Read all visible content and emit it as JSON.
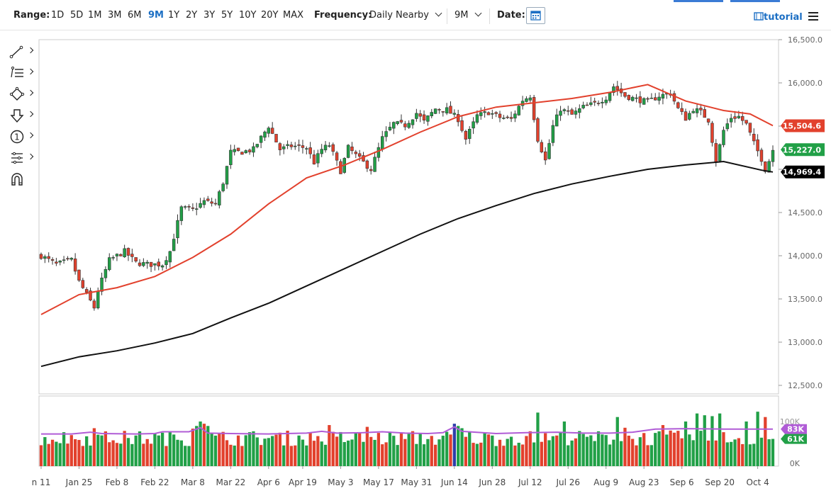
{
  "toolbar": {
    "range_label": "Range:",
    "ranges": [
      "1D",
      "5D",
      "1M",
      "3M",
      "6M",
      "9M",
      "1Y",
      "2Y",
      "3Y",
      "5Y",
      "10Y",
      "20Y",
      "MAX"
    ],
    "selected_range": "9M",
    "frequency_label": "Frequency:",
    "frequency_value": "Daily Nearby",
    "period_value": "9M",
    "date_label": "Date:",
    "tutorial_label": "tutorial"
  },
  "drawing_tools": [
    "line-tool-icon",
    "fib-tool-icon",
    "shape-tool-icon",
    "arrow-tool-icon",
    "annotation-tool-icon",
    "pattern-tool-icon",
    "magnet-icon"
  ],
  "drawing_tool_numeral": "1",
  "colors": {
    "up": "#21a047",
    "down": "#e2412d",
    "ma50": "#e2412d",
    "ma200": "#111111",
    "volume_ma": "#b05cd6",
    "volume_highlight": "#2c3ea8"
  },
  "chart_data": {
    "type": "candlestick",
    "price_axis": {
      "min": 12500,
      "max": 16500,
      "ticks": [
        12500,
        13000,
        13500,
        14000,
        14500,
        15000,
        15500,
        16000,
        16500
      ],
      "tick_labels": [
        "12,500.0",
        "13,000.0",
        "13,500.0",
        "14,000.0",
        "14,500.0",
        "15,000.0",
        "15,500.0",
        "16,000.0",
        "16,500.0"
      ]
    },
    "date_axis": {
      "labels": [
        "n 11",
        "Jan 25",
        "Feb 8",
        "Feb 22",
        "Mar 8",
        "Mar 22",
        "Apr 6",
        "Apr 19",
        "May 3",
        "May 17",
        "May 31",
        "Jun 14",
        "Jun 28",
        "Jul 12",
        "Jul 26",
        "Aug 9",
        "Aug 23",
        "Sep 6",
        "Sep 20",
        "Oct 4"
      ],
      "label_bars": [
        0,
        10,
        20,
        30,
        40,
        50,
        60,
        69,
        79,
        89,
        99,
        109,
        119,
        129,
        139,
        149,
        159,
        169,
        179,
        189
      ]
    },
    "close_path": [
      [
        0,
        14000
      ],
      [
        4,
        13900
      ],
      [
        8,
        13950
      ],
      [
        10,
        13700
      ],
      [
        12,
        13550
      ],
      [
        14,
        13400
      ],
      [
        15,
        13600
      ],
      [
        18,
        13950
      ],
      [
        22,
        14050
      ],
      [
        25,
        13920
      ],
      [
        28,
        13900
      ],
      [
        32,
        13900
      ],
      [
        34,
        14050
      ],
      [
        37,
        14550
      ],
      [
        40,
        14530
      ],
      [
        43,
        14630
      ],
      [
        46,
        14600
      ],
      [
        48,
        14850
      ],
      [
        50,
        15200
      ],
      [
        53,
        15200
      ],
      [
        56,
        15230
      ],
      [
        60,
        15500
      ],
      [
        63,
        15230
      ],
      [
        66,
        15270
      ],
      [
        70,
        15250
      ],
      [
        72,
        15080
      ],
      [
        74,
        15230
      ],
      [
        76,
        15280
      ],
      [
        79,
        14980
      ],
      [
        81,
        15250
      ],
      [
        84,
        15120
      ],
      [
        87,
        15000
      ],
      [
        90,
        15360
      ],
      [
        93,
        15530
      ],
      [
        96,
        15510
      ],
      [
        99,
        15650
      ],
      [
        101,
        15550
      ],
      [
        104,
        15700
      ],
      [
        107,
        15690
      ],
      [
        110,
        15580
      ],
      [
        112,
        15350
      ],
      [
        115,
        15620
      ],
      [
        118,
        15660
      ],
      [
        121,
        15600
      ],
      [
        124,
        15580
      ],
      [
        127,
        15800
      ],
      [
        129,
        15850
      ],
      [
        131,
        15350
      ],
      [
        133,
        15100
      ],
      [
        135,
        15500
      ],
      [
        137,
        15700
      ],
      [
        140,
        15630
      ],
      [
        143,
        15720
      ],
      [
        146,
        15760
      ],
      [
        149,
        15830
      ],
      [
        151,
        15960
      ],
      [
        154,
        15850
      ],
      [
        157,
        15810
      ],
      [
        160,
        15780
      ],
      [
        163,
        15850
      ],
      [
        166,
        15880
      ],
      [
        168,
        15700
      ],
      [
        170,
        15590
      ],
      [
        172,
        15700
      ],
      [
        174,
        15660
      ],
      [
        176,
        15570
      ],
      [
        178,
        15100
      ],
      [
        180,
        15450
      ],
      [
        182,
        15600
      ],
      [
        184,
        15610
      ],
      [
        186,
        15520
      ],
      [
        188,
        15300
      ],
      [
        190,
        15120
      ],
      [
        191,
        15000
      ],
      [
        192,
        15100
      ],
      [
        193,
        15227
      ]
    ],
    "candles_total": 194,
    "last_price": 15227.0,
    "series": [
      {
        "name": "50-day MA",
        "last_value": 15504.6,
        "points": [
          [
            0,
            13320
          ],
          [
            10,
            13550
          ],
          [
            20,
            13630
          ],
          [
            30,
            13760
          ],
          [
            40,
            13980
          ],
          [
            50,
            14250
          ],
          [
            60,
            14600
          ],
          [
            70,
            14900
          ],
          [
            80,
            15050
          ],
          [
            90,
            15230
          ],
          [
            100,
            15430
          ],
          [
            110,
            15610
          ],
          [
            120,
            15720
          ],
          [
            130,
            15770
          ],
          [
            140,
            15820
          ],
          [
            150,
            15890
          ],
          [
            160,
            15980
          ],
          [
            170,
            15790
          ],
          [
            180,
            15680
          ],
          [
            187,
            15640
          ],
          [
            193,
            15505
          ]
        ]
      },
      {
        "name": "200-day MA",
        "last_value": 14969.4,
        "points": [
          [
            0,
            12720
          ],
          [
            10,
            12830
          ],
          [
            20,
            12900
          ],
          [
            30,
            12990
          ],
          [
            40,
            13100
          ],
          [
            50,
            13280
          ],
          [
            60,
            13450
          ],
          [
            70,
            13650
          ],
          [
            80,
            13850
          ],
          [
            90,
            14050
          ],
          [
            100,
            14250
          ],
          [
            110,
            14430
          ],
          [
            120,
            14580
          ],
          [
            130,
            14720
          ],
          [
            140,
            14830
          ],
          [
            150,
            14920
          ],
          [
            160,
            15000
          ],
          [
            170,
            15050
          ],
          [
            180,
            15090
          ],
          [
            190,
            14990
          ],
          [
            193,
            14969
          ]
        ]
      }
    ],
    "volume": {
      "axis_labels": [
        "0K",
        "100K"
      ],
      "max": 100000,
      "ma_last": 83000,
      "last": 61000,
      "ma_label": "83K",
      "last_label": "61K",
      "ma_points": [
        [
          0,
          72000
        ],
        [
          8,
          72000
        ],
        [
          13,
          76000
        ],
        [
          16,
          73000
        ],
        [
          25,
          72000
        ],
        [
          30,
          73000
        ],
        [
          32,
          77000
        ],
        [
          39,
          77000
        ],
        [
          42,
          86000
        ],
        [
          44,
          74000
        ],
        [
          50,
          73000
        ],
        [
          60,
          72000
        ],
        [
          70,
          74000
        ],
        [
          74,
          78000
        ],
        [
          78,
          74000
        ],
        [
          85,
          75000
        ],
        [
          90,
          77000
        ],
        [
          96,
          74000
        ],
        [
          102,
          73000
        ],
        [
          106,
          75000
        ],
        [
          109,
          88000
        ],
        [
          111,
          78000
        ],
        [
          120,
          73000
        ],
        [
          128,
          75000
        ],
        [
          136,
          76000
        ],
        [
          143,
          74000
        ],
        [
          150,
          74000
        ],
        [
          156,
          76000
        ],
        [
          162,
          83000
        ],
        [
          170,
          84000
        ],
        [
          180,
          83000
        ],
        [
          193,
          83000
        ]
      ],
      "spikes": [
        [
          14,
          85000
        ],
        [
          40,
          84000
        ],
        [
          41,
          90000
        ],
        [
          42,
          100000
        ],
        [
          43,
          95000
        ],
        [
          44,
          90000
        ],
        [
          76,
          92000
        ],
        [
          86,
          88000
        ],
        [
          109,
          95000
        ],
        [
          110,
          90000
        ],
        [
          111,
          85000
        ],
        [
          131,
          120000
        ],
        [
          138,
          100000
        ],
        [
          152,
          110000
        ],
        [
          154,
          86000
        ],
        [
          164,
          92000
        ],
        [
          170,
          100000
        ],
        [
          173,
          118000
        ],
        [
          175,
          114000
        ],
        [
          177,
          112000
        ],
        [
          179,
          118000
        ],
        [
          186,
          100000
        ],
        [
          189,
          122000
        ],
        [
          191,
          110000
        ]
      ],
      "highlight_bars": [
        109
      ]
    }
  }
}
